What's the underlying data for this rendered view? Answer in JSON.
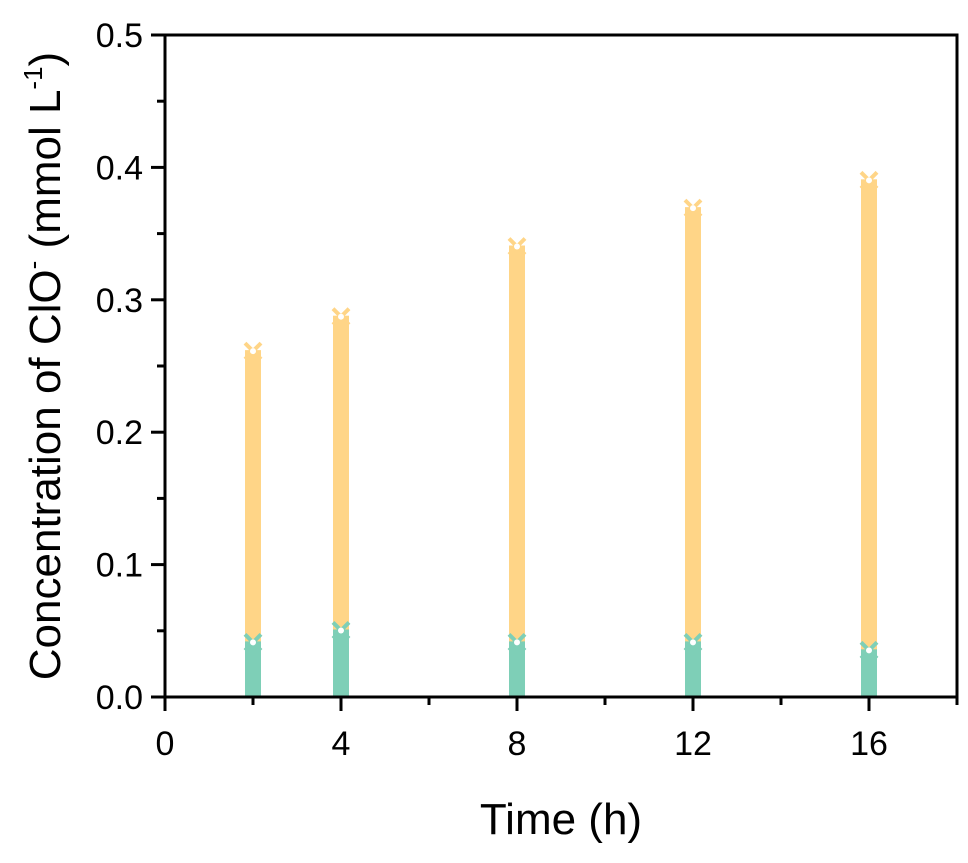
{
  "chart_data": {
    "type": "bar",
    "title": "",
    "xlabel": "Time (h)",
    "ylabel_main": "Concentration of ClO",
    "ylabel_sup1": "-",
    "ylabel_mid": " (mmol L",
    "ylabel_sup2": "-1",
    "ylabel_end": ")",
    "xlim": [
      0,
      18
    ],
    "ylim": [
      0,
      0.5
    ],
    "x_ticks": [
      "0",
      "4",
      "8",
      "12",
      "16"
    ],
    "x_tick_values": [
      0,
      4,
      8,
      12,
      16
    ],
    "y_ticks": [
      "0.0",
      "0.1",
      "0.2",
      "0.3",
      "0.4",
      "0.5"
    ],
    "y_tick_values": [
      0,
      0.1,
      0.2,
      0.3,
      0.4,
      0.5
    ],
    "x": [
      2,
      4,
      8,
      12,
      16
    ],
    "series": [
      {
        "name": "series-orange",
        "color": "#FFD587",
        "values": [
          0.262,
          0.288,
          0.341,
          0.37,
          0.391
        ]
      },
      {
        "name": "series-green",
        "color": "#7ECFB7",
        "values": [
          0.042,
          0.051,
          0.042,
          0.042,
          0.036
        ]
      }
    ],
    "grid": false,
    "legend": "none"
  }
}
